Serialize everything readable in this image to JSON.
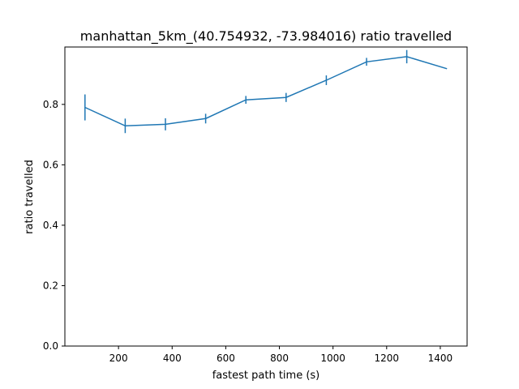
{
  "chart_data": {
    "type": "line",
    "title": "manhattan_5km_(40.754932, -73.984016) ratio travelled",
    "xlabel": "fastest path time (s)",
    "ylabel": "ratio travelled",
    "xlim": [
      0,
      1500
    ],
    "ylim": [
      0,
      0.99
    ],
    "xticks": [
      200,
      400,
      600,
      800,
      1000,
      1200,
      1400
    ],
    "yticks": [
      0.0,
      0.2,
      0.4,
      0.6,
      0.8
    ],
    "xtick_labels": [
      "200",
      "400",
      "600",
      "800",
      "1000",
      "1200",
      "1400"
    ],
    "ytick_labels": [
      "0.0",
      "0.2",
      "0.4",
      "0.6",
      "0.8"
    ],
    "grid": false,
    "color": "#1f77b4",
    "series": [
      {
        "x": [
          75,
          225,
          375,
          525,
          675,
          825,
          975,
          1125,
          1275,
          1425
        ],
        "y": [
          0.79,
          0.729,
          0.734,
          0.753,
          0.815,
          0.823,
          0.88,
          0.941,
          0.958,
          0.918
        ],
        "yerr": [
          0.043,
          0.024,
          0.02,
          0.016,
          0.013,
          0.015,
          0.016,
          0.013,
          0.022,
          0.0
        ]
      }
    ]
  }
}
